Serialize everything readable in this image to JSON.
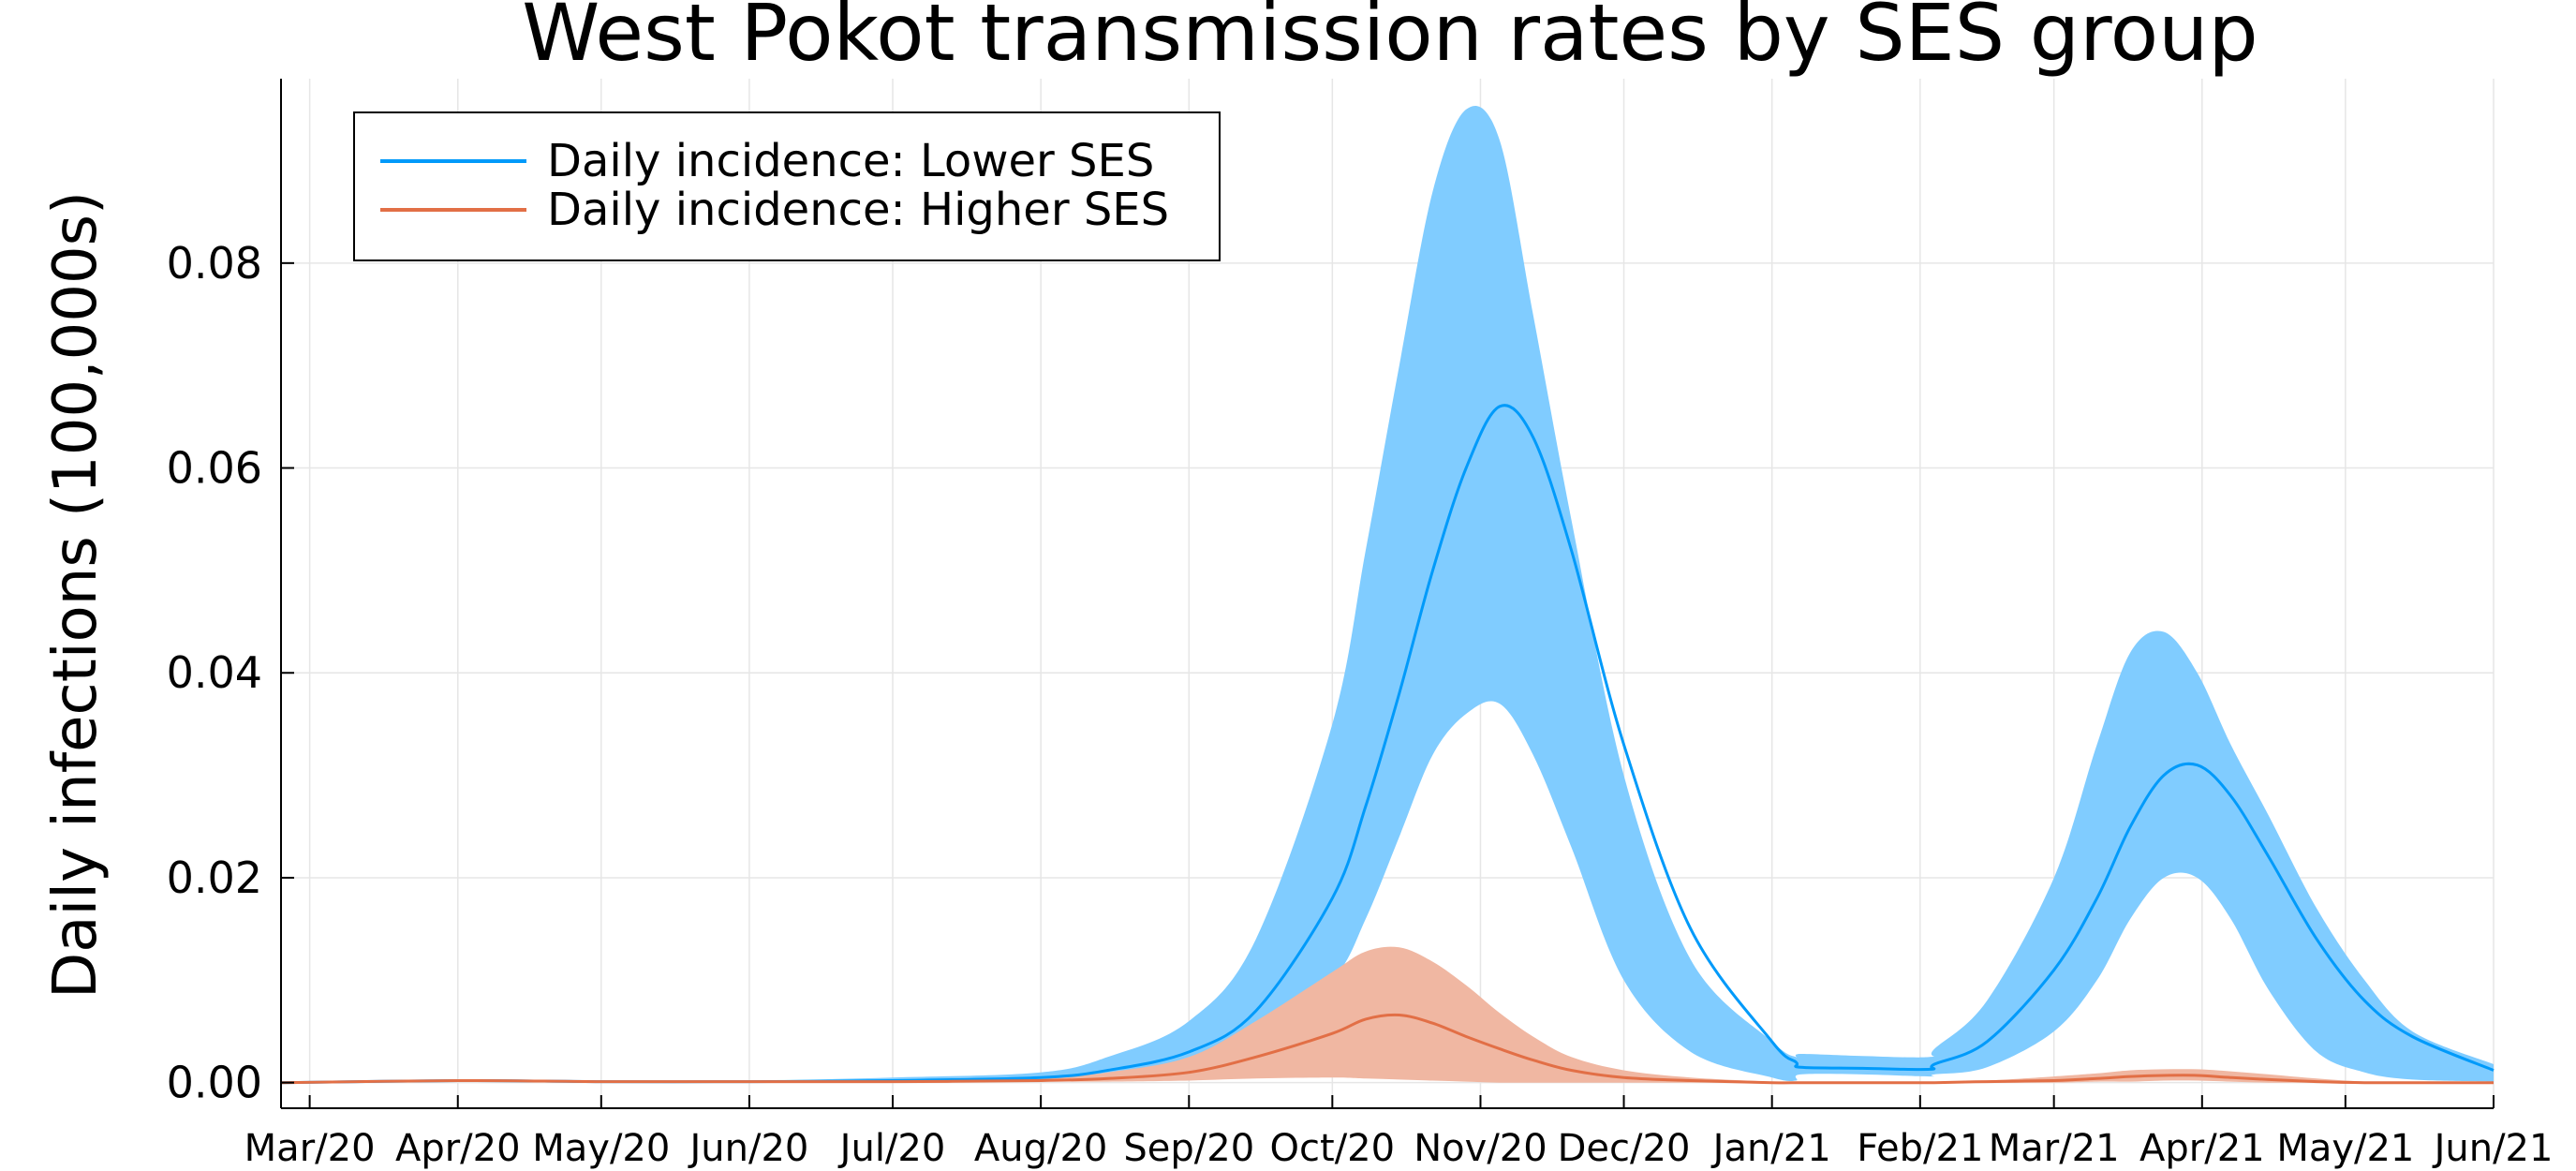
{
  "chart_data": {
    "type": "line",
    "title": "West Pokot transmission rates by SES group",
    "xlabel": "",
    "ylabel": "Daily infections (100,000s)",
    "x_tick_labels": [
      "Mar/20",
      "Apr/20",
      "May/20",
      "Jun/20",
      "Jul/20",
      "Aug/20",
      "Sep/20",
      "Oct/20",
      "Nov/20",
      "Dec/20",
      "Jan/21",
      "Feb/21",
      "Mar/21",
      "Apr/21",
      "May/21",
      "Jun/21"
    ],
    "x_tick_dates": [
      "2020-03-01",
      "2020-04-01",
      "2020-05-01",
      "2020-06-01",
      "2020-07-01",
      "2020-08-01",
      "2020-09-01",
      "2020-10-01",
      "2020-11-01",
      "2020-12-01",
      "2021-01-01",
      "2021-02-01",
      "2021-03-01",
      "2021-04-01",
      "2021-05-01",
      "2021-06-01"
    ],
    "xlim": [
      "2020-02-24",
      "2021-06-01"
    ],
    "ylim": [
      -0.0025,
      0.098
    ],
    "y_ticks": [
      0.0,
      0.02,
      0.04,
      0.06,
      0.08
    ],
    "y_tick_labels": [
      "0.00",
      "0.02",
      "0.04",
      "0.06",
      "0.08"
    ],
    "grid": true,
    "legend_position": "top-left",
    "series": [
      {
        "name": "Daily incidence: Lower SES",
        "color": "#009AFA",
        "band_color": "#80CCFF",
        "x": [
          "2020-02-24",
          "2020-04-01",
          "2020-05-01",
          "2020-06-01",
          "2020-07-01",
          "2020-08-01",
          "2020-08-15",
          "2020-09-01",
          "2020-09-15",
          "2020-10-01",
          "2020-10-08",
          "2020-10-15",
          "2020-10-22",
          "2020-10-29",
          "2020-11-05",
          "2020-11-12",
          "2020-11-20",
          "2020-12-01",
          "2020-12-15",
          "2021-01-01",
          "2021-01-06",
          "2021-01-07",
          "2021-01-20",
          "2021-02-03",
          "2021-02-04",
          "2021-02-15",
          "2021-03-01",
          "2021-03-10",
          "2021-03-17",
          "2021-03-24",
          "2021-03-31",
          "2021-04-07",
          "2021-04-15",
          "2021-04-25",
          "2021-05-05",
          "2021-05-15",
          "2021-06-01"
        ],
        "y": [
          0.0,
          0.0002,
          0.0001,
          0.0001,
          0.0002,
          0.0005,
          0.0012,
          0.003,
          0.007,
          0.018,
          0.027,
          0.038,
          0.05,
          0.06,
          0.066,
          0.063,
          0.052,
          0.033,
          0.015,
          0.004,
          0.002,
          0.0015,
          0.0014,
          0.0013,
          0.0018,
          0.004,
          0.011,
          0.018,
          0.025,
          0.03,
          0.031,
          0.028,
          0.022,
          0.014,
          0.008,
          0.0045,
          0.0012
        ],
        "lower": [
          0.0,
          0.0001,
          0.0,
          0.0,
          0.0001,
          0.0003,
          0.0007,
          0.0017,
          0.004,
          0.01,
          0.016,
          0.024,
          0.032,
          0.036,
          0.037,
          0.032,
          0.023,
          0.01,
          0.003,
          0.0005,
          0.0002,
          0.0008,
          0.0008,
          0.0006,
          0.0008,
          0.0015,
          0.005,
          0.01,
          0.016,
          0.02,
          0.02,
          0.016,
          0.009,
          0.003,
          0.001,
          0.0003,
          0.0001
        ],
        "upper": [
          0.0,
          0.0003,
          0.0002,
          0.0002,
          0.0005,
          0.001,
          0.0025,
          0.006,
          0.014,
          0.035,
          0.052,
          0.07,
          0.087,
          0.095,
          0.092,
          0.075,
          0.055,
          0.03,
          0.012,
          0.004,
          0.0025,
          0.0028,
          0.0026,
          0.0025,
          0.0033,
          0.008,
          0.02,
          0.033,
          0.042,
          0.044,
          0.04,
          0.033,
          0.026,
          0.017,
          0.01,
          0.005,
          0.0018
        ]
      },
      {
        "name": "Daily incidence: Higher SES",
        "color": "#E26F46",
        "band_color": "#F0B7A2",
        "x": [
          "2020-02-24",
          "2020-04-01",
          "2020-05-01",
          "2020-06-01",
          "2020-07-01",
          "2020-08-01",
          "2020-08-15",
          "2020-09-01",
          "2020-09-15",
          "2020-10-01",
          "2020-10-08",
          "2020-10-15",
          "2020-10-22",
          "2020-10-29",
          "2020-11-05",
          "2020-11-12",
          "2020-11-20",
          "2020-12-01",
          "2020-12-15",
          "2021-01-01",
          "2021-01-06",
          "2021-01-07",
          "2021-01-20",
          "2021-02-03",
          "2021-02-04",
          "2021-02-15",
          "2021-03-01",
          "2021-03-10",
          "2021-03-17",
          "2021-03-24",
          "2021-03-31",
          "2021-04-07",
          "2021-04-15",
          "2021-04-25",
          "2021-05-05",
          "2021-05-15",
          "2021-06-01"
        ],
        "y": [
          0.0,
          0.0002,
          0.0001,
          0.0001,
          0.0001,
          0.0002,
          0.0004,
          0.001,
          0.0025,
          0.0048,
          0.0062,
          0.0066,
          0.0058,
          0.0045,
          0.0033,
          0.0022,
          0.0012,
          0.0005,
          0.0002,
          0.0,
          0.0,
          0.0,
          0.0,
          0.0,
          0.0,
          0.0001,
          0.0002,
          0.0004,
          0.0006,
          0.0007,
          0.0007,
          0.0005,
          0.0003,
          0.0001,
          0.0,
          0.0,
          0.0
        ],
        "lower": [
          0.0,
          0.0001,
          0.0,
          0.0,
          0.0,
          0.0001,
          0.0001,
          0.0002,
          0.0004,
          0.0005,
          0.0004,
          0.0003,
          0.0002,
          0.0001,
          0.0,
          0.0,
          0.0,
          0.0,
          0.0,
          0.0,
          0.0,
          0.0,
          0.0,
          0.0,
          0.0,
          0.0,
          0.0,
          0.0001,
          0.0001,
          0.0002,
          0.0002,
          0.0001,
          0.0,
          0.0,
          0.0,
          0.0,
          0.0
        ],
        "upper": [
          0.0,
          0.0003,
          0.0002,
          0.0002,
          0.0003,
          0.0005,
          0.001,
          0.0025,
          0.006,
          0.0108,
          0.0128,
          0.0132,
          0.0118,
          0.0095,
          0.0068,
          0.0045,
          0.0025,
          0.0012,
          0.0005,
          0.0001,
          0.0,
          0.0,
          0.0,
          0.0,
          0.0,
          0.0002,
          0.0006,
          0.0009,
          0.0012,
          0.0013,
          0.0013,
          0.0011,
          0.0008,
          0.0004,
          0.0001,
          0.0,
          0.0
        ]
      }
    ]
  }
}
